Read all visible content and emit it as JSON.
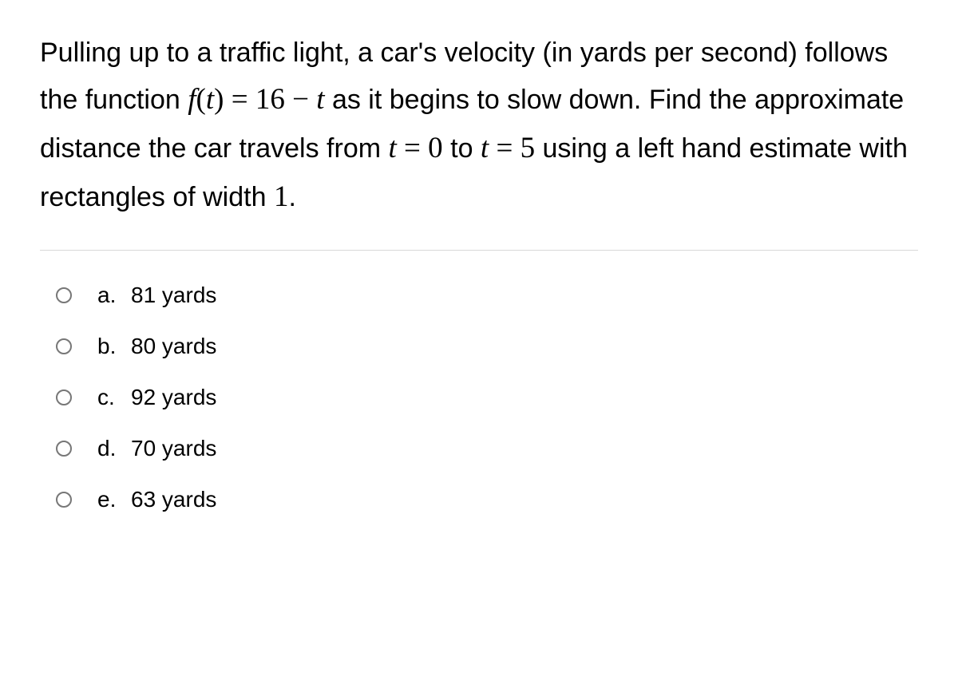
{
  "question": {
    "part1": "Pulling up to a traffic light, a car's velocity (in yards per second) follows the function ",
    "func_lhs": "f",
    "func_arg_open": "(",
    "func_var": "t",
    "func_arg_close": ")",
    "eq1": " = ",
    "rhs_const": "16",
    "rhs_minus": " − ",
    "rhs_var": "t",
    "part2": " as it begins to slow down. Find the approximate distance the car travels from ",
    "t_var1": "t",
    "eq2": " = ",
    "t0": "0",
    "to_word": " to ",
    "t_var2": "t",
    "eq3": " = ",
    "t1": "5",
    "part3": " using a left hand estimate with rectangles of width ",
    "width": "1",
    "period": "."
  },
  "options": [
    {
      "letter": "a.",
      "text": "81 yards"
    },
    {
      "letter": "b.",
      "text": "80 yards"
    },
    {
      "letter": "c.",
      "text": "92 yards"
    },
    {
      "letter": "d.",
      "text": "70 yards"
    },
    {
      "letter": "e.",
      "text": "63 yards"
    }
  ],
  "styles": {
    "text_color": "#000000",
    "bg_color": "#ffffff",
    "divider_color": "#d8d8d8",
    "radio_border": "#777777",
    "question_fontsize": 34,
    "option_fontsize": 28
  }
}
